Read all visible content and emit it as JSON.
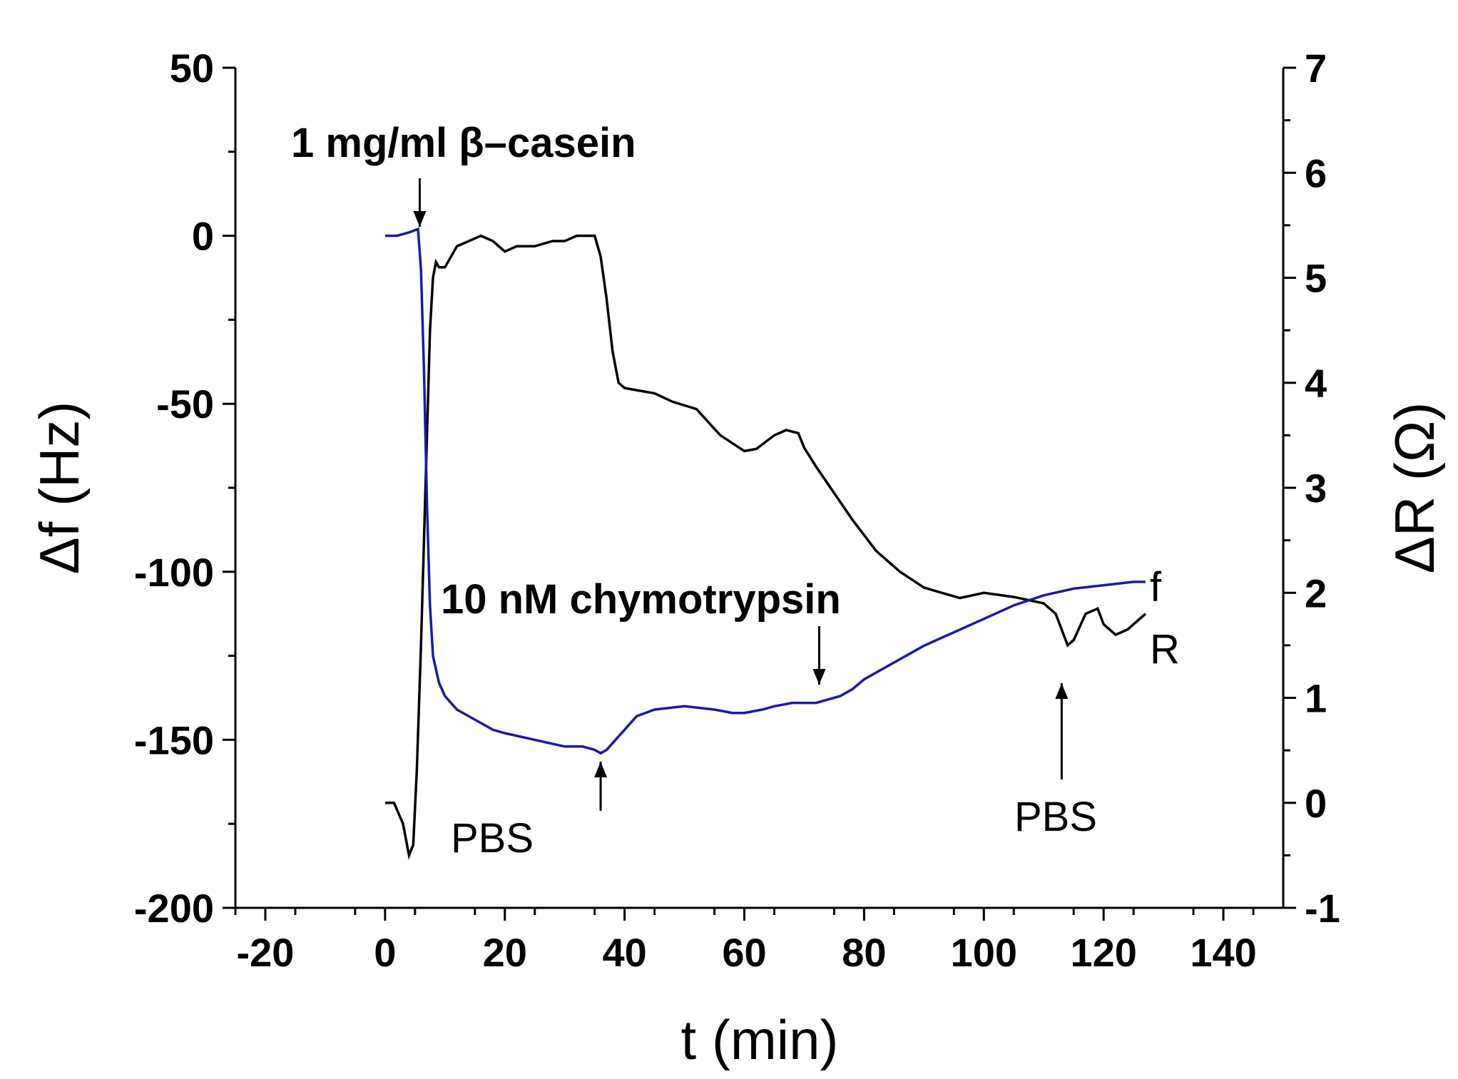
{
  "chart_data": {
    "type": "line",
    "title": "",
    "xlabel": "t (min)",
    "ylabel_left": "Δf (Hz)",
    "ylabel_right": "ΔR (Ω)",
    "xlim": [
      -25,
      150
    ],
    "ylim_left": [
      -200,
      50
    ],
    "ylim_right": [
      -1,
      7
    ],
    "x_ticks": [
      -20,
      0,
      20,
      40,
      60,
      80,
      100,
      120,
      140
    ],
    "y_left_ticks": [
      50,
      0,
      -50,
      -100,
      -150,
      -200
    ],
    "y_right_ticks": [
      7,
      6,
      5,
      4,
      3,
      2,
      1,
      0,
      -1
    ],
    "x_tick_labels": [
      "-20",
      "0",
      "20",
      "40",
      "60",
      "80",
      "100",
      "120",
      "140"
    ],
    "y_left_tick_labels": [
      "50",
      "0",
      "-50",
      "-100",
      "-150",
      "-200"
    ],
    "y_right_tick_labels": [
      "7",
      "6",
      "5",
      "4",
      "3",
      "2",
      "1",
      "0",
      "-1"
    ],
    "colors": {
      "f": "#1a1aa6",
      "R": "#000000"
    },
    "series": [
      {
        "name": "f",
        "axis": "left",
        "label": "f",
        "color": "#1a1aa6",
        "x": [
          0,
          2,
          4,
          5.5,
          6,
          6.5,
          7,
          7.5,
          8,
          9,
          10,
          12,
          15,
          18,
          20,
          25,
          30,
          33,
          35,
          36,
          37,
          38,
          40,
          42,
          45,
          50,
          55,
          58,
          60,
          63,
          65,
          68,
          72,
          76,
          78,
          80,
          85,
          90,
          95,
          100,
          105,
          110,
          115,
          120,
          125,
          127
        ],
        "y": [
          0,
          0,
          1,
          2,
          -10,
          -40,
          -80,
          -110,
          -125,
          -133,
          -137,
          -141,
          -144,
          -147,
          -148,
          -150,
          -152,
          -152,
          -153,
          -154,
          -153,
          -151,
          -147,
          -143,
          -141,
          -140,
          -141,
          -142,
          -142,
          -141,
          -140,
          -139,
          -139,
          -137,
          -135,
          -132,
          -127,
          -122,
          -118,
          -114,
          -110,
          -107,
          -105,
          -104,
          -103,
          -103
        ]
      },
      {
        "name": "R",
        "axis": "right",
        "label": "R",
        "color": "#000000",
        "x": [
          0,
          1.5,
          3,
          4,
          4.7,
          5.3,
          6,
          6.5,
          7,
          7.5,
          8,
          8.5,
          9,
          10,
          12,
          14,
          16,
          18,
          20,
          22,
          25,
          28,
          30,
          32,
          34,
          35,
          36,
          37,
          38,
          39,
          40,
          42,
          45,
          48,
          52,
          56,
          60,
          62,
          65,
          67,
          69,
          70,
          72,
          75,
          78,
          82,
          86,
          90,
          93,
          96,
          100,
          105,
          110,
          112,
          114,
          115,
          117,
          119,
          120,
          122,
          124,
          126,
          127
        ],
        "y": [
          0,
          0,
          -0.2,
          -0.5,
          -0.4,
          0.3,
          1.5,
          2.5,
          3.5,
          4.5,
          5.0,
          5.15,
          5.1,
          5.1,
          5.3,
          5.35,
          5.4,
          5.35,
          5.25,
          5.3,
          5.3,
          5.35,
          5.35,
          5.4,
          5.4,
          5.4,
          5.2,
          4.8,
          4.3,
          4.0,
          3.95,
          3.93,
          3.9,
          3.82,
          3.75,
          3.5,
          3.35,
          3.37,
          3.5,
          3.55,
          3.52,
          3.38,
          3.2,
          2.95,
          2.7,
          2.4,
          2.2,
          2.05,
          2.0,
          1.95,
          2.0,
          1.96,
          1.9,
          1.8,
          1.5,
          1.55,
          1.8,
          1.85,
          1.7,
          1.6,
          1.65,
          1.75,
          1.8
        ]
      }
    ],
    "annotations": [
      {
        "id": "casein",
        "text": "1 mg/ml β–casein",
        "bold": true,
        "arrow_x": 6.5
      },
      {
        "id": "chymo",
        "text": "10 nM chymotrypsin",
        "bold": true,
        "arrow_x": 72.5
      },
      {
        "id": "pbs1",
        "text": "PBS",
        "bold": false,
        "arrow_x": 36
      },
      {
        "id": "pbs2",
        "text": "PBS",
        "bold": false,
        "arrow_x": 113
      }
    ]
  }
}
